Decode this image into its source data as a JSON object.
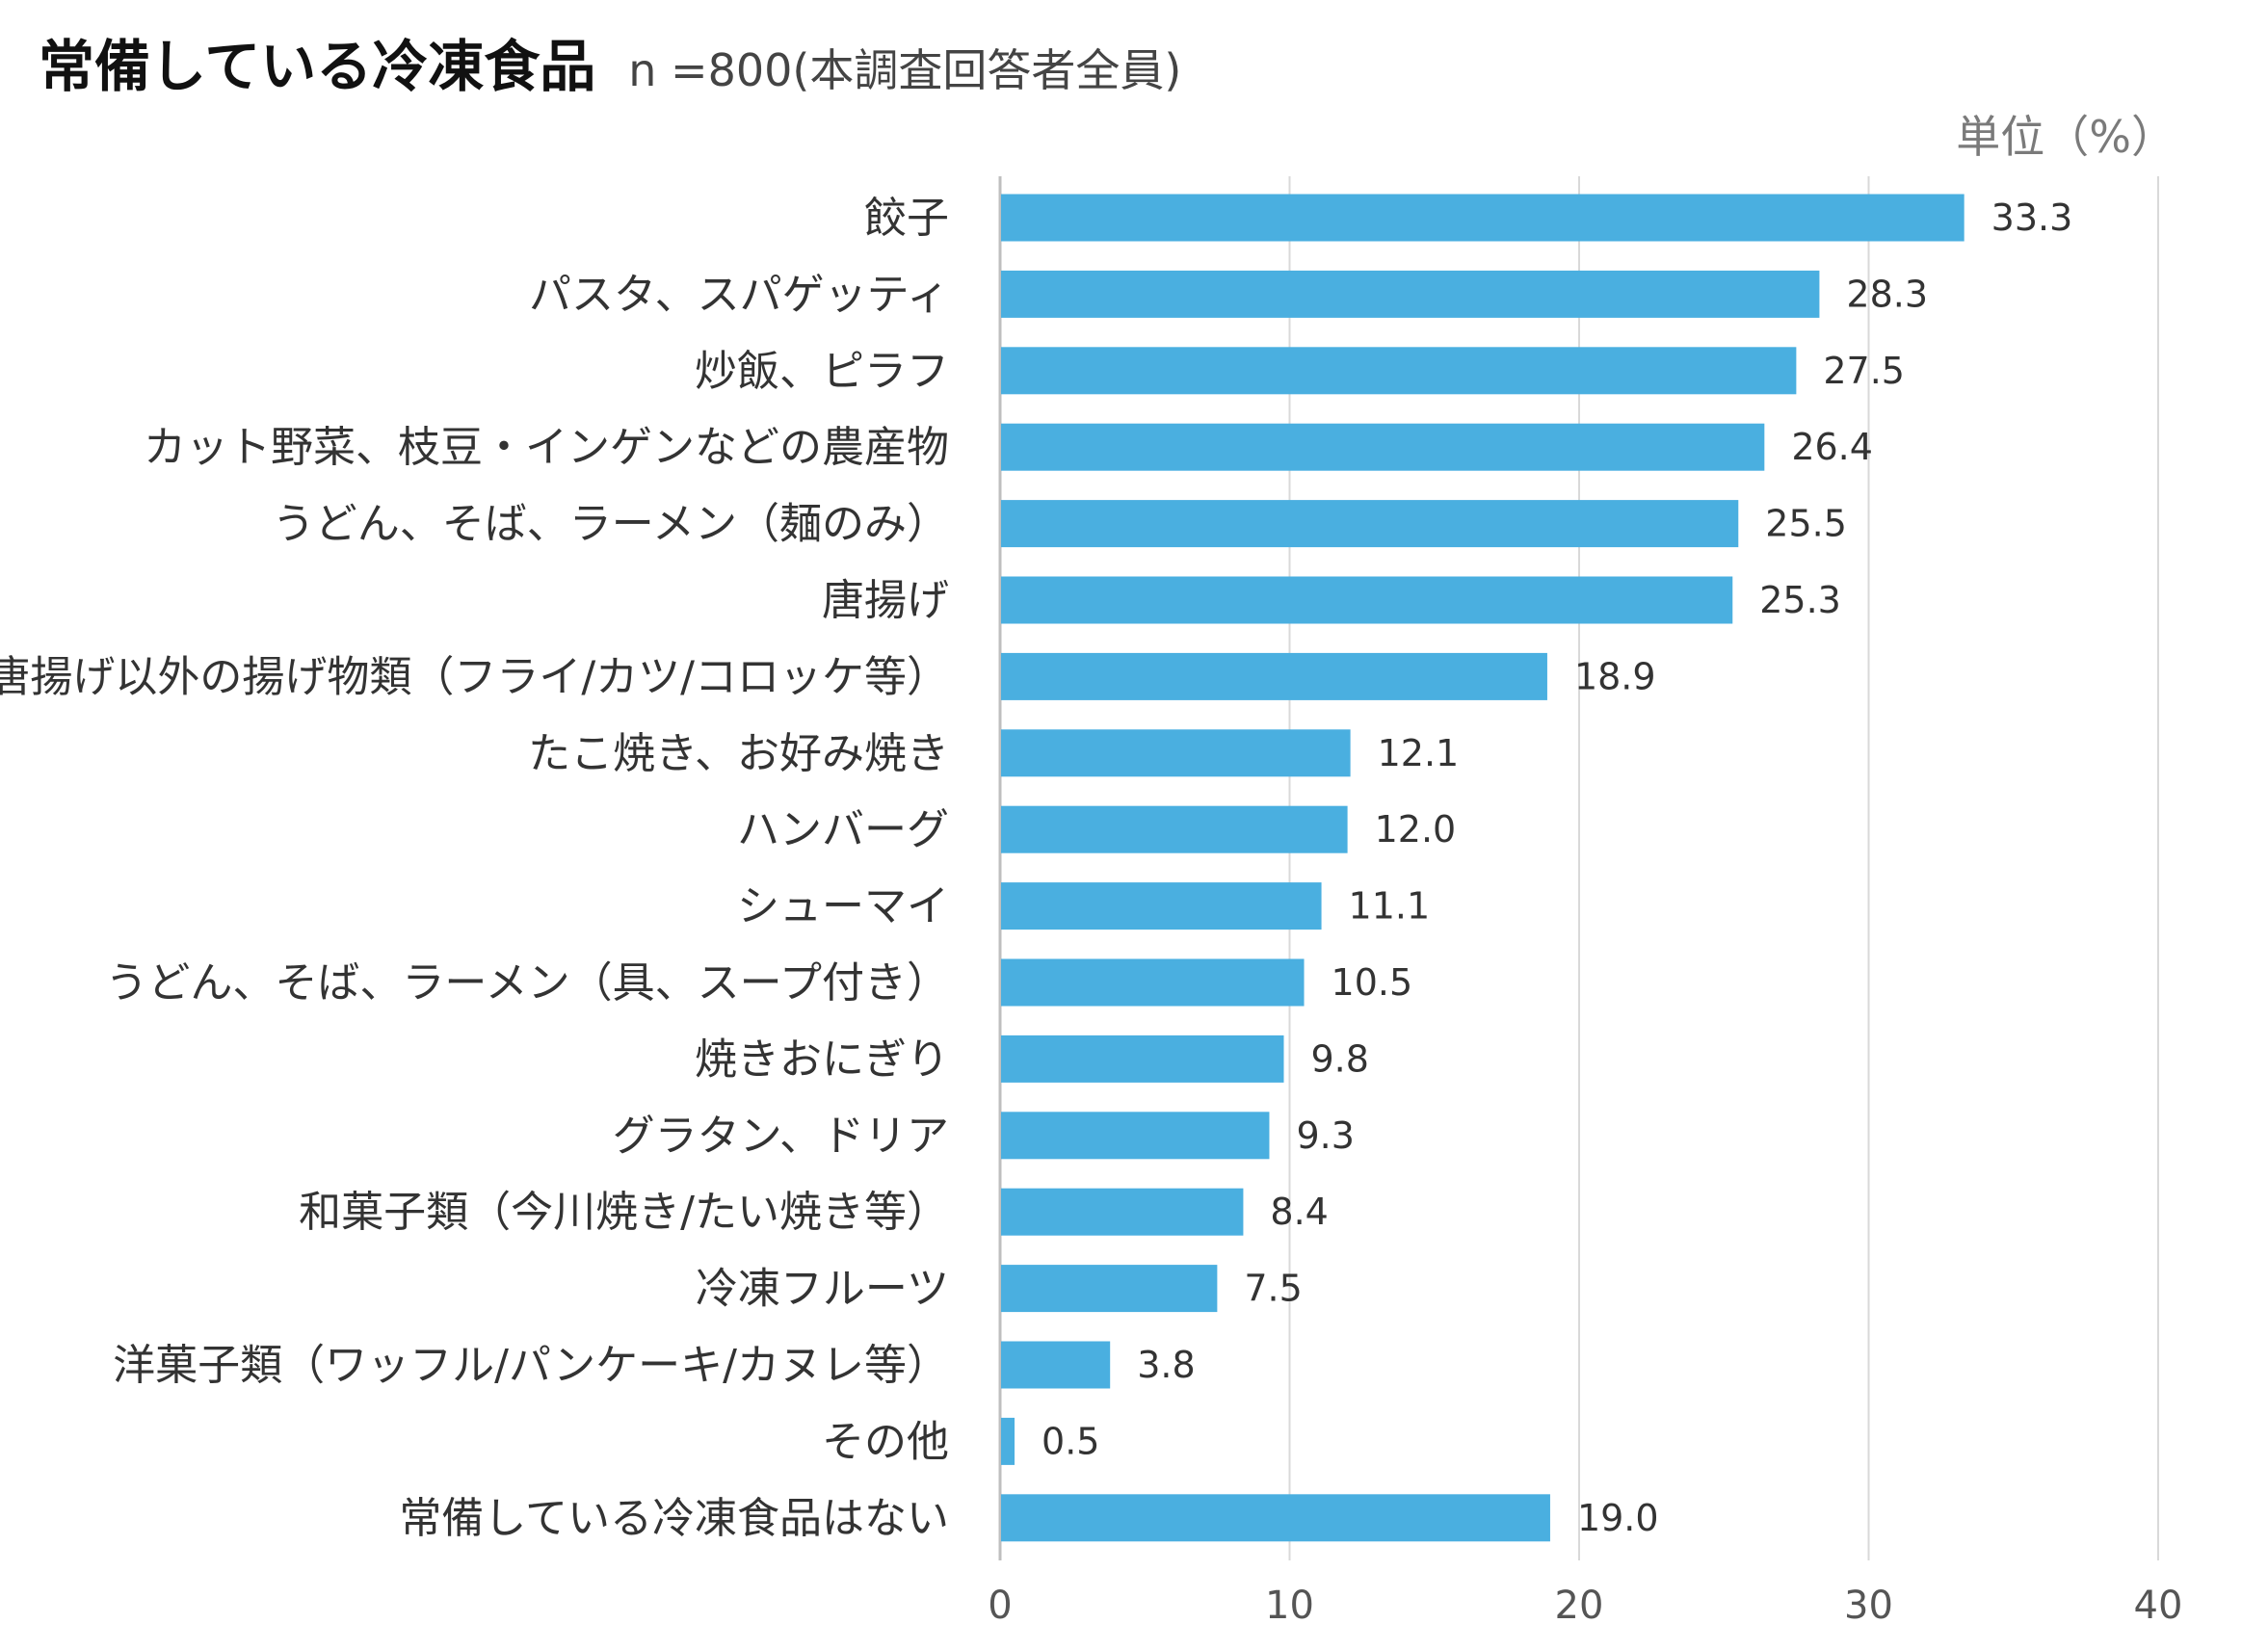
{
  "header": {
    "title": "常備している冷凍食品",
    "subtitle": "n =800(本調査回答者全員)",
    "unit": "単位（%）"
  },
  "colors": {
    "bar": "#4AAFE0",
    "grid": "#D9D9D9",
    "axis": "#BFBFBF"
  },
  "chart_data": {
    "type": "bar",
    "orientation": "horizontal",
    "title": "常備している冷凍食品",
    "subtitle": "n =800(本調査回答者全員)",
    "unit_label": "単位（%）",
    "categories": [
      "餃子",
      "パスタ、スパゲッティ",
      "炒飯、ピラフ",
      "カット野菜、枝豆・インゲンなどの農産物",
      "うどん、そば、ラーメン（麺のみ）",
      "唐揚げ",
      "唐揚げ以外の揚げ物類（フライ/カツ/コロッケ等）",
      "たこ焼き、お好み焼き",
      "ハンバーグ",
      "シューマイ",
      "うどん、そば、ラーメン（具、スープ付き）",
      "焼きおにぎり",
      "グラタン、ドリア",
      "和菓子類（今川焼き/たい焼き等）",
      "冷凍フルーツ",
      "洋菓子類（ワッフル/パンケーキ/カヌレ等）",
      "その他",
      "常備している冷凍食品はない"
    ],
    "values": [
      33.3,
      28.3,
      27.5,
      26.4,
      25.5,
      25.3,
      18.9,
      12.1,
      12.0,
      11.1,
      10.5,
      9.8,
      9.3,
      8.4,
      7.5,
      3.8,
      0.5,
      19.0
    ],
    "value_labels": [
      "33.3",
      "28.3",
      "27.5",
      "26.4",
      "25.5",
      "25.3",
      "18.9",
      "12.1",
      "12.0",
      "11.1",
      "10.5",
      "9.8",
      "9.3",
      "8.4",
      "7.5",
      "3.8",
      "0.5",
      "19.0"
    ],
    "xlim": [
      0,
      40
    ],
    "x_ticks": [
      0,
      10,
      20,
      30,
      40
    ],
    "x_tick_labels": [
      "0",
      "10",
      "20",
      "30",
      "40"
    ],
    "grid": true,
    "legend": "none"
  }
}
